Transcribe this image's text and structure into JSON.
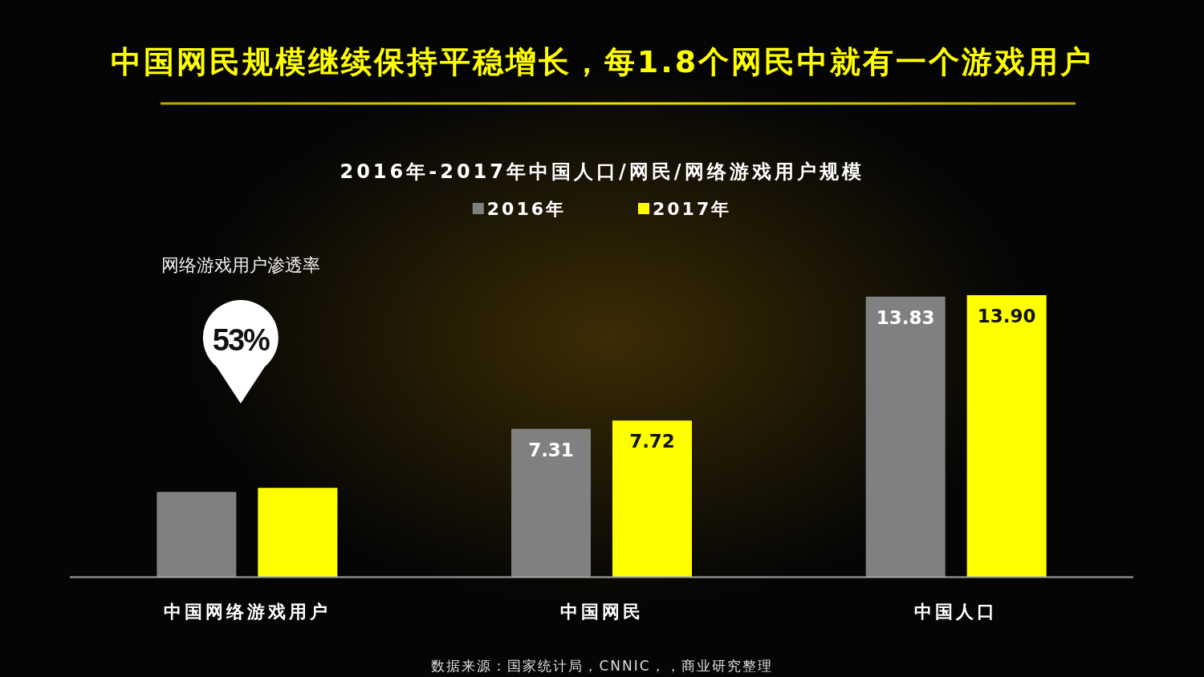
{
  "chart_data": {
    "type": "bar",
    "title": "中国网民规模继续保持平稳增长，每1.8个网民中就有一个游戏用户",
    "subtitle": "2016年-2017年中国人口/网民/网络游戏用户规模",
    "categories": [
      "中国网络游戏用户",
      "中国网民",
      "中国人口"
    ],
    "series": [
      {
        "name": "2016年",
        "color": "#808080",
        "values": [
          4.2,
          7.31,
          13.83
        ],
        "value_labels": [
          null,
          "7.31",
          "13.83"
        ]
      },
      {
        "name": "2017年",
        "color": "#ffff00",
        "values": [
          4.4,
          7.72,
          13.9
        ],
        "value_labels": [
          null,
          "7.72",
          "13.90"
        ]
      }
    ],
    "legend": "top",
    "tick_labels": "x",
    "annotations": [
      "网络游戏用户渗透率",
      "53%",
      "数据来源：国家统计局，CNNIC，，商业研究整理"
    ]
  }
}
